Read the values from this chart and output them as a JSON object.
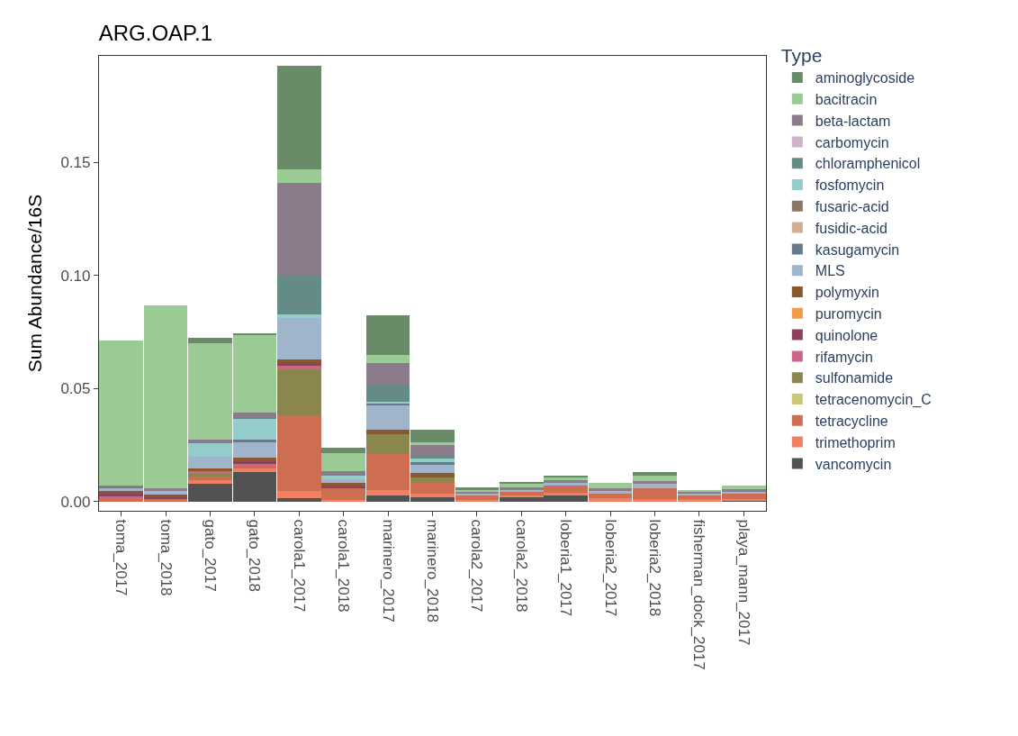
{
  "chart_data": {
    "type": "bar",
    "stacked": true,
    "title": "ARG.OAP.1",
    "ylabel": "Sum Abundance/16S",
    "legend_title": "Type",
    "legend": "right",
    "categories": [
      "toma_2017",
      "toma_2018",
      "gato_2017",
      "gato_2018",
      "carola1_2017",
      "carola1_2018",
      "marinero_2017",
      "marinero_2018",
      "carola2_2017",
      "carola2_2018",
      "loberia1_2017",
      "loberia2_2017",
      "loberia2_2018",
      "fisherman_dock_2017",
      "playa_mann_2017"
    ],
    "ylim": [
      -0.004,
      0.197
    ],
    "yticks": [
      {
        "value": 0,
        "label": "0.00"
      },
      {
        "value": 0.05,
        "label": "0.05"
      },
      {
        "value": 0.1,
        "label": "0.10"
      },
      {
        "value": 0.15,
        "label": "0.15"
      }
    ],
    "series": [
      {
        "name": "vancomycin",
        "color": "#525252",
        "values": [
          0,
          0,
          0.008,
          0.013,
          0.0016,
          0,
          0.0027,
          0.0019,
          0,
          0.002,
          0.0028,
          0,
          0,
          0,
          0.0004
        ]
      },
      {
        "name": "trimethoprim",
        "color": "#ef8162",
        "values": [
          0,
          0,
          0.0016,
          0.0016,
          0.0031,
          0.0009,
          0.0024,
          0.0016,
          0.0009,
          0.0009,
          0.0011,
          0.0015,
          0.0011,
          0.0011,
          0.0009
        ]
      },
      {
        "name": "tetracycline",
        "color": "#cd6e52",
        "values": [
          0.0013,
          0.0013,
          0.0015,
          0.0011,
          0.0333,
          0.0052,
          0.0161,
          0.0048,
          0.0017,
          0.0013,
          0.0031,
          0.0021,
          0.0048,
          0.0016,
          0.0021
        ]
      },
      {
        "name": "tetracenomycin_C",
        "color": "#cdc773",
        "values": [
          0,
          0,
          0,
          0,
          0,
          0,
          0,
          0,
          0,
          0,
          0,
          0,
          0,
          0,
          0
        ]
      },
      {
        "name": "sulfonamide",
        "color": "#8b864e",
        "values": [
          0,
          0,
          0.0012,
          0,
          0.0206,
          0,
          0.0088,
          0.0024,
          0,
          0,
          0,
          0,
          0,
          0,
          0
        ]
      },
      {
        "name": "rifamycin",
        "color": "#cd6686",
        "values": [
          0.0011,
          0,
          0.0011,
          0.0011,
          0.0016,
          0,
          0,
          0,
          0,
          0,
          0,
          0,
          0,
          0,
          0
        ]
      },
      {
        "name": "quinolone",
        "color": "#8b435d",
        "values": [
          0.0012,
          0.0005,
          0,
          0.0012,
          0.0011,
          0.0005,
          0,
          0,
          0,
          0,
          0,
          0,
          0,
          0,
          0
        ]
      },
      {
        "name": "puromycin",
        "color": "#ef9b4b",
        "values": [
          0,
          0,
          0,
          0,
          0,
          0,
          0,
          0,
          0,
          0,
          0,
          0,
          0,
          0,
          0
        ]
      },
      {
        "name": "polymyxin",
        "color": "#8b582e",
        "values": [
          0.0011,
          0.0012,
          0.0013,
          0.0015,
          0.0017,
          0.0017,
          0.0019,
          0.002,
          0,
          0,
          0,
          0,
          0,
          0,
          0
        ]
      },
      {
        "name": "MLS",
        "color": "#a0b4cc",
        "values": [
          0.0013,
          0.0016,
          0.0051,
          0.0068,
          0.0183,
          0.0016,
          0.0108,
          0.0036,
          0.0008,
          0.0008,
          0.0013,
          0.0011,
          0.002,
          0.0008,
          0.0008
        ]
      },
      {
        "name": "kasugamycin",
        "color": "#677a8b",
        "values": [
          0.0004,
          0,
          0,
          0.0012,
          0,
          0,
          0.0005,
          0.0012,
          0,
          0,
          0,
          0,
          0,
          0,
          0
        ]
      },
      {
        "name": "fusidic-acid",
        "color": "#cfae94",
        "values": [
          0,
          0,
          0,
          0,
          0,
          0,
          0,
          0,
          0,
          0,
          0,
          0,
          0,
          0,
          0
        ]
      },
      {
        "name": "fusaric-acid",
        "color": "#8b7766",
        "values": [
          0,
          0,
          0,
          0,
          0,
          0,
          0,
          0,
          0,
          0,
          0,
          0,
          0,
          0,
          0
        ]
      },
      {
        "name": "fosfomycin",
        "color": "#94cccb",
        "values": [
          0,
          0,
          0.0059,
          0.0092,
          0.0016,
          0.0016,
          0.0011,
          0.0016,
          0,
          0,
          0,
          0,
          0,
          0,
          0
        ]
      },
      {
        "name": "chloramphenicol",
        "color": "#658b87",
        "values": [
          0,
          0,
          0,
          0.0007,
          0.0173,
          0,
          0.0073,
          0.0015,
          0,
          0,
          0,
          0,
          0,
          0,
          0
        ]
      },
      {
        "name": "carbomycin",
        "color": "#ccb3cc",
        "values": [
          0,
          0,
          0,
          0,
          0,
          0,
          0,
          0,
          0,
          0,
          0,
          0,
          0,
          0,
          0
        ]
      },
      {
        "name": "beta-lactam",
        "color": "#8c7b8a",
        "values": [
          0.0009,
          0.0013,
          0.0019,
          0.0021,
          0.0405,
          0.0019,
          0.0098,
          0.0044,
          0.0008,
          0.0012,
          0.0012,
          0.0012,
          0.0012,
          0.0009,
          0.0012
        ]
      },
      {
        "name": "bacitracin",
        "color": "#9bcb95",
        "values": [
          0.064,
          0.081,
          0.0423,
          0.034,
          0.006,
          0.008,
          0.0036,
          0.0013,
          0.0008,
          0.002,
          0.0016,
          0.0024,
          0.0024,
          0.0007,
          0.0016
        ]
      },
      {
        "name": "aminoglycoside",
        "color": "#6a8b67",
        "values": [
          0,
          0,
          0.0024,
          0.0011,
          0.0458,
          0.0024,
          0.0172,
          0.0056,
          0.0012,
          0.0004,
          0.0004,
          0,
          0.0016,
          0,
          0
        ]
      }
    ]
  }
}
